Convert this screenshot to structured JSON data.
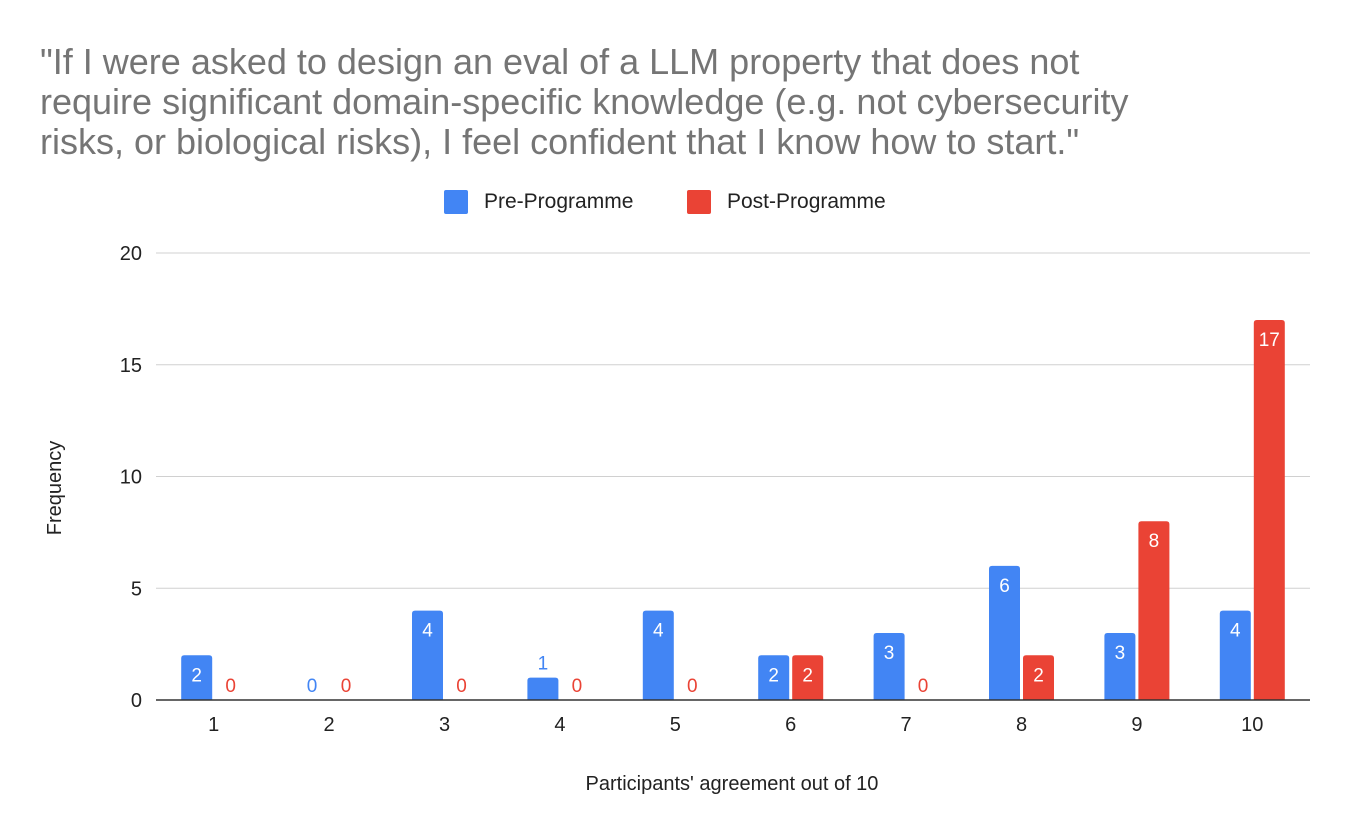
{
  "chart_data": {
    "type": "bar",
    "title_lines": [
      "\"If I were asked to design an eval of a LLM property that does not",
      "require significant domain-specific knowledge (e.g. not cybersecurity",
      "risks, or biological risks), I feel confident that I know how to start.\""
    ],
    "categories": [
      "1",
      "2",
      "3",
      "4",
      "5",
      "6",
      "7",
      "8",
      "9",
      "10"
    ],
    "series": [
      {
        "name": "Pre-Programme",
        "color": "#4285f4",
        "values": [
          2,
          0,
          4,
          1,
          4,
          2,
          3,
          6,
          3,
          4
        ]
      },
      {
        "name": "Post-Programme",
        "color": "#ea4335",
        "values": [
          0,
          0,
          0,
          0,
          0,
          2,
          0,
          2,
          8,
          17
        ]
      }
    ],
    "xlabel": "Participants' agreement out of 10",
    "ylabel": "Frequency",
    "ylim": [
      0,
      20
    ],
    "yticks": [
      0,
      5,
      10,
      15,
      20
    ],
    "legend_position": "top-center",
    "grid": true
  }
}
